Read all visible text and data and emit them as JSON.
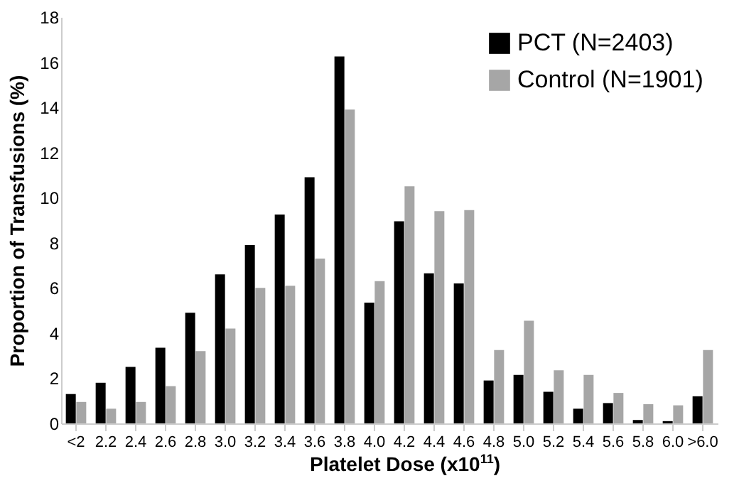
{
  "chart_data": {
    "type": "bar",
    "xlabel": "Platelet Dose (x10$^{11}$)",
    "ylabel": "Proportion of Transfusions (%)",
    "categories": [
      "<2",
      "2.2",
      "2.4",
      "2.6",
      "2.8",
      "3.0",
      "3.2",
      "3.4",
      "3.6",
      "3.8",
      "4.0",
      "4.2",
      "4.4",
      "4.6",
      "4.8",
      "5.0",
      "5.2",
      "5.4",
      "5.6",
      "5.8",
      "6.0",
      ">6.0"
    ],
    "series": [
      {
        "name": "PCT (N=2403)",
        "color": "#000000",
        "values": [
          1.3,
          1.8,
          2.5,
          3.35,
          4.9,
          6.6,
          7.9,
          9.25,
          10.9,
          16.25,
          5.35,
          8.95,
          6.65,
          6.2,
          1.9,
          2.15,
          1.4,
          0.65,
          0.9,
          0.15,
          0.1,
          1.2
        ]
      },
      {
        "name": "Control (N=1901)",
        "color": "#a6a6a6",
        "values": [
          0.95,
          0.65,
          0.95,
          1.65,
          3.2,
          4.2,
          6.0,
          6.1,
          7.3,
          13.9,
          6.3,
          10.5,
          9.4,
          9.45,
          3.25,
          4.55,
          2.35,
          2.15,
          1.35,
          0.85,
          0.8,
          3.25
        ]
      }
    ],
    "ylim": [
      0,
      18
    ],
    "yticks": [
      0,
      2,
      4,
      6,
      8,
      10,
      12,
      14,
      16,
      18
    ],
    "grid": false,
    "legend": "top right"
  }
}
